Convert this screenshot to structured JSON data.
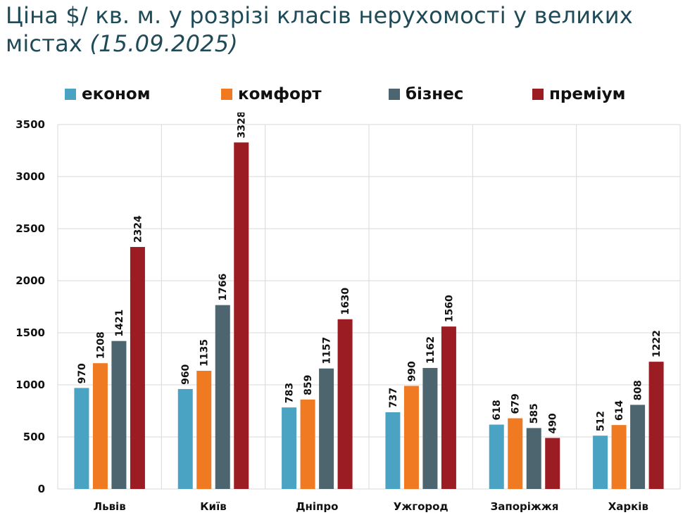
{
  "title_main": "Ціна $/ кв. м. у розрізі класів нерухомості у великих містах",
  "title_date": "(15.09.2025)",
  "chart_data": {
    "type": "bar",
    "title": "Ціна $/ кв. м. у розрізі класів нерухомості у великих містах (15.09.2025)",
    "categories": [
      "Львів",
      "Київ",
      "Дніпро",
      "Ужгород",
      "Запоріжжя",
      "Харків"
    ],
    "series": [
      {
        "name": "економ",
        "color": "#4ba3c3",
        "values": [
          970,
          960,
          783,
          737,
          618,
          512
        ]
      },
      {
        "name": "комфорт",
        "color": "#f07a22",
        "values": [
          1208,
          1135,
          859,
          990,
          679,
          614
        ]
      },
      {
        "name": "бізнес",
        "color": "#4d656e",
        "values": [
          1421,
          1766,
          1157,
          1162,
          585,
          808
        ]
      },
      {
        "name": "преміум",
        "color": "#9b1c22",
        "values": [
          2324,
          3328,
          1630,
          1560,
          490,
          1222
        ]
      }
    ],
    "ylim": [
      0,
      3500
    ],
    "yticks": [
      0,
      500,
      1000,
      1500,
      2000,
      2500,
      3000,
      3500
    ],
    "grid": true,
    "legend": "top"
  }
}
